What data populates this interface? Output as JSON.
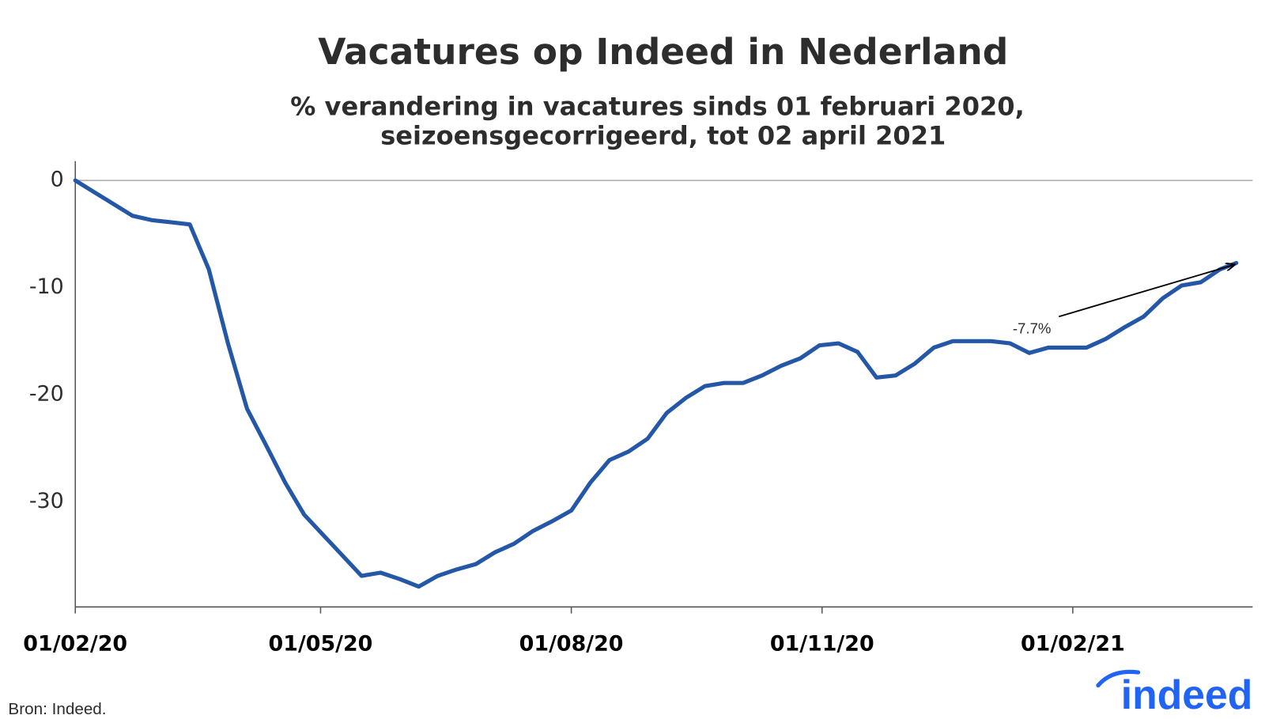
{
  "chart_data": {
    "type": "line",
    "title": "Vacatures op Indeed in Nederland",
    "subtitle": [
      "% verandering in vacatures sinds 01 februari 2020,",
      "seizoensgecorrigeerd, tot 02 april 2021"
    ],
    "x": [
      "2020-02-01",
      "2020-02-08",
      "2020-02-15",
      "2020-02-22",
      "2020-02-29",
      "2020-03-07",
      "2020-03-14",
      "2020-03-21",
      "2020-03-28",
      "2020-04-04",
      "2020-04-11",
      "2020-04-18",
      "2020-04-25",
      "2020-05-02",
      "2020-05-09",
      "2020-05-16",
      "2020-05-23",
      "2020-05-30",
      "2020-06-06",
      "2020-06-13",
      "2020-06-20",
      "2020-06-27",
      "2020-07-04",
      "2020-07-11",
      "2020-07-18",
      "2020-07-25",
      "2020-08-01",
      "2020-08-08",
      "2020-08-15",
      "2020-08-22",
      "2020-08-29",
      "2020-09-05",
      "2020-09-12",
      "2020-09-19",
      "2020-09-26",
      "2020-10-03",
      "2020-10-10",
      "2020-10-17",
      "2020-10-24",
      "2020-10-31",
      "2020-11-07",
      "2020-11-14",
      "2020-11-21",
      "2020-11-28",
      "2020-12-05",
      "2020-12-12",
      "2020-12-19",
      "2020-12-26",
      "2021-01-02",
      "2021-01-09",
      "2021-01-16",
      "2021-01-23",
      "2021-01-30",
      "2021-02-06",
      "2021-02-13",
      "2021-02-20",
      "2021-02-27",
      "2021-03-06",
      "2021-03-13",
      "2021-03-20",
      "2021-03-27",
      "2021-04-02"
    ],
    "series": [
      {
        "name": "Vacatures",
        "color": "#2557a7",
        "values": [
          0,
          -1.1,
          -2.2,
          -3.3,
          -3.7,
          -3.9,
          -4.1,
          -8.3,
          -15.2,
          -21.3,
          -24.7,
          -28.2,
          -31.2,
          -33.1,
          -35.0,
          -36.9,
          -36.6,
          -37.2,
          -37.9,
          -36.9,
          -36.3,
          -35.8,
          -34.7,
          -33.9,
          -32.7,
          -31.8,
          -30.8,
          -28.2,
          -26.1,
          -25.3,
          -24.1,
          -21.7,
          -20.3,
          -19.2,
          -18.9,
          -18.9,
          -18.2,
          -17.3,
          -16.6,
          -15.4,
          -15.2,
          -16.0,
          -18.4,
          -18.2,
          -17.1,
          -15.6,
          -15.0,
          -15.0,
          -15.0,
          -15.2,
          -16.1,
          -15.6,
          -15.6,
          -15.6,
          -14.8,
          -13.7,
          -12.7,
          -11.0,
          -9.8,
          -9.5,
          -8.3,
          -7.7
        ]
      }
    ],
    "xlim": [
      "2020-02-01",
      "2021-04-08"
    ],
    "xticks": [
      {
        "value": "2020-02-01",
        "label": "01/02/20"
      },
      {
        "value": "2020-05-01",
        "label": "01/05/20"
      },
      {
        "value": "2020-08-01",
        "label": "01/08/20"
      },
      {
        "value": "2020-11-01",
        "label": "01/11/20"
      },
      {
        "value": "2021-02-01",
        "label": "01/02/21"
      }
    ],
    "ylim": [
      -39.8,
      1.8
    ],
    "yticks": [
      0,
      -10,
      -20,
      -30
    ],
    "grid": false,
    "annotations": [
      {
        "text": "-7.7%"
      }
    ],
    "source": "Bron: Indeed.",
    "logo": "indeed"
  }
}
